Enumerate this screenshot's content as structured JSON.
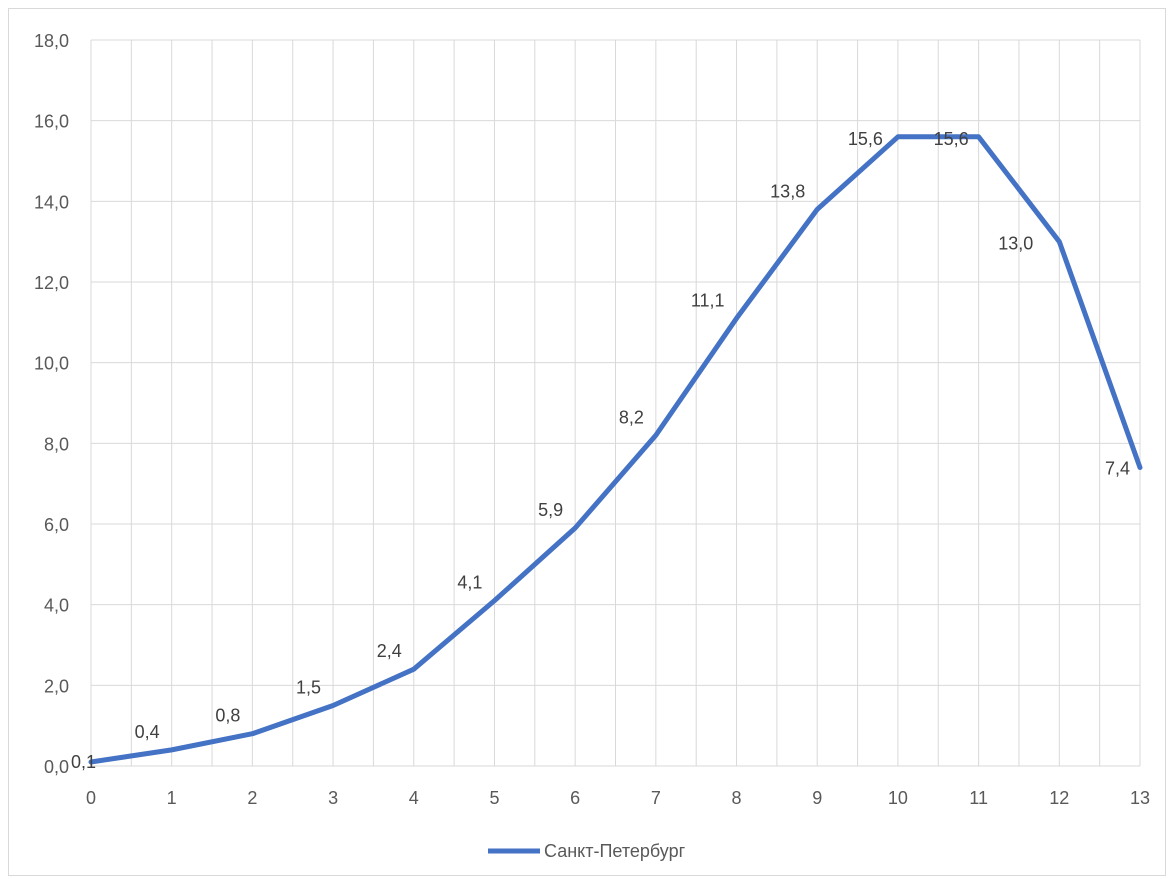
{
  "chart_data": {
    "type": "line",
    "title": "",
    "xlabel": "",
    "ylabel": "",
    "x": [
      0,
      1,
      2,
      3,
      4,
      5,
      6,
      7,
      8,
      9,
      10,
      11,
      12,
      13
    ],
    "series": [
      {
        "name": "Санкт-Петербург",
        "color": "#4472c4",
        "values": [
          0.1,
          0.4,
          0.8,
          1.5,
          2.4,
          4.1,
          5.9,
          8.2,
          11.1,
          13.8,
          15.6,
          15.6,
          13.0,
          7.4
        ],
        "labels": [
          "0,1",
          "0,4",
          "0,8",
          "1,5",
          "2,4",
          "4,1",
          "5,9",
          "8,2",
          "11,1",
          "13,8",
          "15,6",
          "15,6",
          "13,0",
          "7,4"
        ]
      }
    ],
    "xlim": [
      0,
      13
    ],
    "ylim": [
      0,
      18
    ],
    "x_ticks": [
      0,
      1,
      2,
      3,
      4,
      5,
      6,
      7,
      8,
      9,
      10,
      11,
      12,
      13
    ],
    "x_tick_labels": [
      "0",
      "1",
      "2",
      "3",
      "4",
      "5",
      "6",
      "7",
      "8",
      "9",
      "10",
      "11",
      "12",
      "13"
    ],
    "y_ticks": [
      0,
      2,
      4,
      6,
      8,
      10,
      12,
      14,
      16,
      18
    ],
    "y_tick_labels": [
      "0,0",
      "2,0",
      "4,0",
      "6,0",
      "8,0",
      "10,0",
      "12,0",
      "14,0",
      "16,0",
      "18,0"
    ],
    "grid": true,
    "minor_vertical_grid": true,
    "legend": "bottom"
  }
}
